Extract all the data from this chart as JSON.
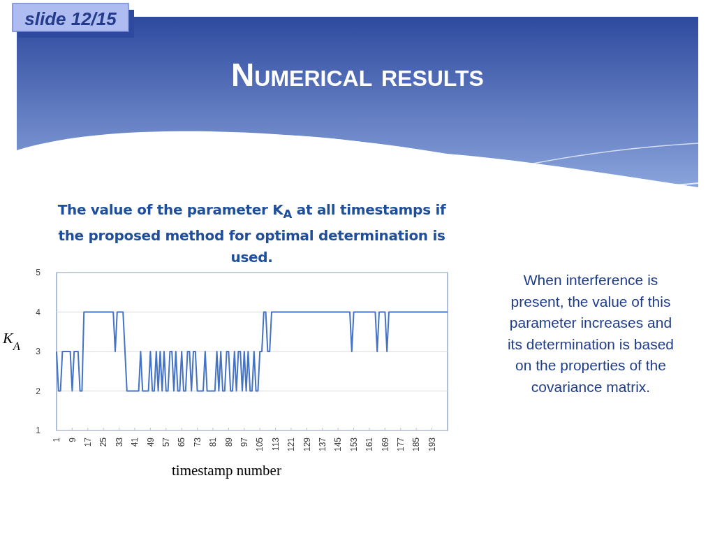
{
  "chart_data": {
    "type": "line",
    "title": "Numerical results",
    "subtitle": "The value of the parameter K$_{A}$ at all timestamps if the proposed method for optimal determination is used.",
    "xlabel": "timestamp number",
    "ylabel": "K$_{A}$",
    "annotations": [
      "slide 12/15",
      "When interference is present, the value of this parameter increases and its determination is based on the properties of the covariance matrix."
    ],
    "x": [
      1,
      2,
      3,
      4,
      5,
      6,
      7,
      8,
      9,
      10,
      11,
      12,
      13,
      14,
      15,
      16,
      17,
      18,
      19,
      20,
      21,
      22,
      23,
      24,
      25,
      26,
      27,
      28,
      29,
      30,
      31,
      32,
      33,
      34,
      35,
      36,
      37,
      38,
      39,
      40,
      41,
      42,
      43,
      44,
      45,
      46,
      47,
      48,
      49,
      50,
      51,
      52,
      53,
      54,
      55,
      56,
      57,
      58,
      59,
      60,
      61,
      62,
      63,
      64,
      65,
      66,
      67,
      68,
      69,
      70,
      71,
      72,
      73,
      74,
      75,
      76,
      77,
      78,
      79,
      80,
      81,
      82,
      83,
      84,
      85,
      86,
      87,
      88,
      89,
      90,
      91,
      92,
      93,
      94,
      95,
      96,
      97,
      98,
      99,
      100,
      101,
      102,
      103,
      104,
      105,
      106,
      107,
      108,
      109,
      110,
      111,
      112,
      113,
      114,
      115,
      116,
      117,
      118,
      119,
      120,
      121,
      122,
      123,
      124,
      125,
      126,
      127,
      128,
      129,
      130,
      131,
      132,
      133,
      134,
      135,
      136,
      137,
      138,
      139,
      140,
      141,
      142,
      143,
      144,
      145,
      146,
      147,
      148,
      149,
      150,
      151,
      152,
      153,
      154,
      155,
      156,
      157,
      158,
      159,
      160,
      161,
      162,
      163,
      164,
      165,
      166,
      167,
      168,
      169,
      170,
      171,
      172,
      173,
      174,
      175,
      176,
      177,
      178,
      179,
      180,
      181,
      182,
      183,
      184,
      185,
      186,
      187,
      188,
      189,
      190,
      191,
      192,
      193,
      194,
      195,
      196,
      197,
      198,
      199,
      200,
      201
    ],
    "series": [
      {
        "color": "#4472c4",
        "values": [
          3,
          2,
          2,
          3,
          3,
          3,
          3,
          3,
          2,
          3,
          3,
          3,
          2,
          2,
          4,
          4,
          4,
          4,
          4,
          4,
          4,
          4,
          4,
          4,
          4,
          4,
          4,
          4,
          4,
          4,
          3,
          4,
          4,
          4,
          4,
          3,
          2,
          2,
          2,
          2,
          2,
          2,
          2,
          3,
          2,
          2,
          2,
          2,
          3,
          2,
          2,
          3,
          2,
          3,
          2,
          3,
          2,
          2,
          3,
          3,
          2,
          3,
          2,
          2,
          3,
          2,
          2,
          3,
          3,
          2,
          3,
          3,
          2,
          2,
          2,
          2,
          3,
          2,
          2,
          2,
          2,
          2,
          3,
          2,
          3,
          2,
          2,
          3,
          3,
          2,
          2,
          3,
          2,
          3,
          3,
          2,
          3,
          2,
          3,
          2,
          2,
          3,
          2,
          2,
          3,
          3,
          4,
          4,
          3,
          3,
          4,
          4,
          4,
          4,
          4,
          4,
          4,
          4,
          4,
          4,
          4,
          4,
          4,
          4,
          4,
          4,
          4,
          4,
          4,
          4,
          4,
          4,
          4,
          4,
          4,
          4,
          4,
          4,
          4,
          4,
          4,
          4,
          4,
          4,
          4,
          4,
          4,
          4,
          4,
          4,
          4,
          3,
          4,
          4,
          4,
          4,
          4,
          4,
          4,
          4,
          4,
          4,
          4,
          4,
          3,
          4,
          4,
          4,
          4,
          3,
          4,
          4,
          4,
          4,
          4,
          4,
          4,
          4,
          4,
          4,
          4,
          4,
          4,
          4,
          4,
          4,
          4,
          4,
          4,
          4,
          4,
          4,
          4,
          4,
          4,
          4,
          4,
          4,
          4,
          4,
          4
        ]
      }
    ],
    "xlim": [
      1,
      201
    ],
    "xticks": [
      1,
      9,
      17,
      25,
      33,
      41,
      49,
      57,
      65,
      73,
      81,
      89,
      97,
      105,
      113,
      121,
      129,
      137,
      145,
      153,
      161,
      169,
      177,
      185,
      193
    ],
    "ylim": [
      1,
      5
    ],
    "yticks": [
      1,
      2,
      3,
      4,
      5
    ],
    "grid": "y",
    "marker": "none",
    "line_style": "solid"
  }
}
